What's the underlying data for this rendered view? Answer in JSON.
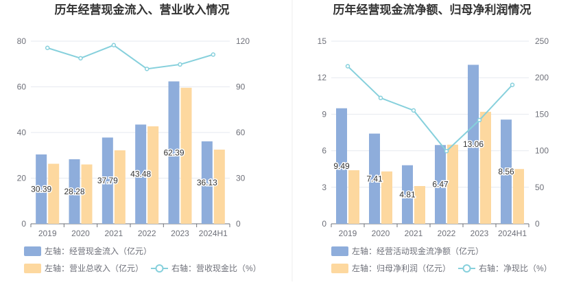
{
  "chart_data": [
    {
      "type": "bar",
      "title": "历年经营现金流入、营业收入情况",
      "categories": [
        "2019",
        "2020",
        "2021",
        "2022",
        "2023",
        "2024H1"
      ],
      "left_axis": {
        "ticks": [
          "0",
          "20",
          "40",
          "60",
          "80"
        ],
        "min": 0,
        "max": 80
      },
      "right_axis": {
        "ticks": [
          "0",
          "30",
          "60",
          "90",
          "120"
        ],
        "min": 0,
        "max": 120
      },
      "grid": true,
      "legend_position": "bottom",
      "series": [
        {
          "name": "左轴：经营现金流入（亿元）",
          "kind": "bar",
          "axis": "left",
          "color": "#8eaddb",
          "values": [
            30.39,
            28.28,
            37.79,
            43.48,
            62.39,
            36.13
          ],
          "labels": [
            "30.39",
            "28.28",
            "37.79",
            "43.48",
            "62.39",
            "36.13"
          ]
        },
        {
          "name": "左轴：营业总收入（亿元）",
          "kind": "bar",
          "axis": "left",
          "color": "#fdd89f",
          "values": [
            26.3,
            26.0,
            32.2,
            42.7,
            59.6,
            32.5
          ]
        },
        {
          "name": "右轴：营收现金比（%）",
          "kind": "line",
          "axis": "right",
          "color": "#86d0dc",
          "values": [
            115.6,
            108.8,
            117.4,
            101.8,
            104.7,
            111.2
          ]
        }
      ]
    },
    {
      "type": "bar",
      "title": "历年经营现金流净额、归母净利润情况",
      "categories": [
        "2019",
        "2020",
        "2021",
        "2022",
        "2023",
        "2024H1"
      ],
      "left_axis": {
        "ticks": [
          "0",
          "3",
          "6",
          "9",
          "12",
          "15"
        ],
        "min": 0,
        "max": 15
      },
      "right_axis": {
        "ticks": [
          "0",
          "50",
          "100",
          "150",
          "200",
          "250"
        ],
        "min": 0,
        "max": 250
      },
      "grid": true,
      "legend_position": "bottom",
      "series": [
        {
          "name": "左轴：经营活动现金流净额（亿元）",
          "kind": "bar",
          "axis": "left",
          "color": "#8eaddb",
          "values": [
            9.49,
            7.41,
            4.81,
            6.47,
            13.06,
            8.56
          ],
          "labels": [
            "9.49",
            "7.41",
            "4.81",
            "6.47",
            "13.06",
            "8.56"
          ]
        },
        {
          "name": "左轴：归母净利润（亿元）",
          "kind": "bar",
          "axis": "left",
          "color": "#fdd89f",
          "values": [
            4.4,
            4.3,
            3.1,
            6.5,
            9.2,
            4.5
          ]
        },
        {
          "name": "右轴：净现比（%）",
          "kind": "line",
          "axis": "right",
          "color": "#86d0dc",
          "values": [
            215.7,
            172.3,
            155.2,
            99.5,
            142.0,
            190.2
          ]
        }
      ]
    }
  ]
}
